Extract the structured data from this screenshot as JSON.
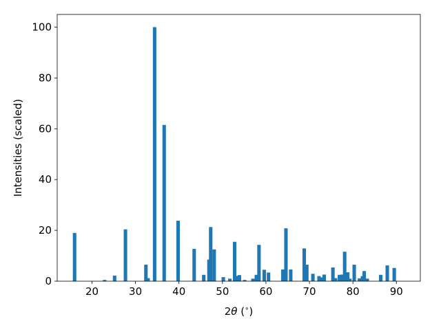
{
  "chart_data": {
    "type": "bar",
    "title": "",
    "xlabel": "2θ (°)",
    "xlabel_parts": {
      "pre": "2",
      "theta": "θ",
      "unit_open": " (",
      "degree": "∘",
      "unit_close": ")"
    },
    "ylabel": "Intensities (scaled)",
    "xlim": [
      12,
      95.5
    ],
    "ylim": [
      0,
      105
    ],
    "xticks": [
      "20",
      "30",
      "40",
      "50",
      "60",
      "70",
      "80",
      "90"
    ],
    "yticks": [
      "0",
      "20",
      "40",
      "60",
      "80",
      "100"
    ],
    "grid": false,
    "bar_color": "#1f77b4",
    "bar_width": 0.8,
    "series": [
      {
        "x": [
          16.0,
          22.9,
          25.2,
          27.7,
          32.4,
          32.9,
          34.4,
          36.6,
          39.8,
          43.5,
          45.7,
          46.9,
          47.3,
          48.1,
          50.2,
          51.7,
          52.8,
          53.5,
          53.9,
          55.1,
          57.0,
          57.8,
          58.4,
          59.6,
          60.6,
          63.9,
          64.6,
          65.7,
          68.8,
          69.4,
          70.8,
          72.2,
          72.7,
          73.4,
          75.4,
          76.0,
          76.9,
          77.5,
          78.1,
          78.8,
          79.3,
          80.3,
          81.5,
          82.2,
          82.6,
          83.3,
          86.4,
          87.9,
          89.5
        ],
        "values": [
          19.0,
          0.5,
          2.2,
          20.4,
          6.5,
          1.2,
          100.0,
          61.5,
          23.8,
          12.7,
          2.5,
          8.5,
          21.3,
          12.5,
          1.6,
          1.0,
          15.5,
          2.1,
          2.4,
          0.5,
          1.0,
          2.5,
          14.3,
          4.5,
          3.4,
          4.6,
          20.8,
          4.6,
          12.9,
          6.5,
          2.9,
          2.0,
          1.5,
          2.6,
          5.4,
          1.2,
          2.5,
          2.6,
          11.6,
          3.5,
          1.0,
          6.5,
          1.1,
          2.0,
          4.0,
          1.0,
          2.5,
          6.2,
          5.2
        ]
      }
    ]
  }
}
